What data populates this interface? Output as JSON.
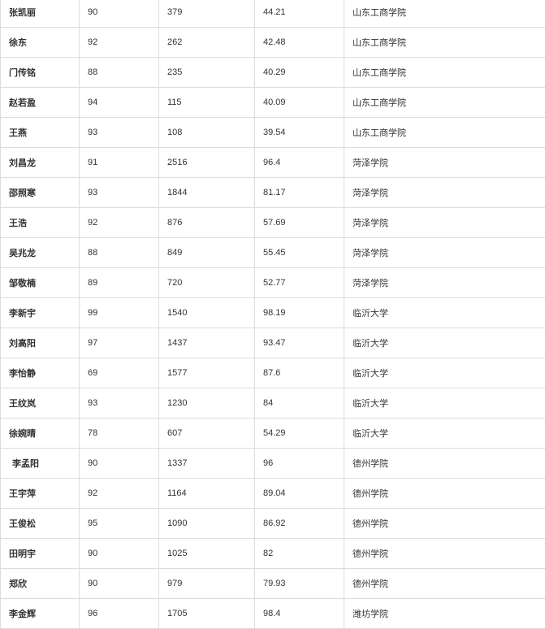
{
  "table": {
    "rows": [
      [
        "张凯丽",
        "90",
        "379",
        "44.21",
        "山东工商学院"
      ],
      [
        "徐东",
        "92",
        "262",
        "42.48",
        "山东工商学院"
      ],
      [
        "门传铭",
        "88",
        "235",
        "40.29",
        "山东工商学院"
      ],
      [
        "赵若盈",
        "94",
        "115",
        "40.09",
        "山东工商学院"
      ],
      [
        "王燕",
        "93",
        "108",
        "39.54",
        "山东工商学院"
      ],
      [
        "刘昌龙",
        "91",
        "2516",
        "96.4",
        "菏泽学院"
      ],
      [
        "邵照寒",
        "93",
        "1844",
        "81.17",
        "菏泽学院"
      ],
      [
        "王浩",
        "92",
        "876",
        "57.69",
        "菏泽学院"
      ],
      [
        "吴兆龙",
        "88",
        "849",
        "55.45",
        "菏泽学院"
      ],
      [
        "邹敬楠",
        "89",
        "720",
        "52.77",
        "菏泽学院"
      ],
      [
        "李新宇",
        "99",
        "1540",
        "98.19",
        "临沂大学"
      ],
      [
        "刘高阳",
        "97",
        "1437",
        "93.47",
        "临沂大学"
      ],
      [
        "李怡静",
        "69",
        "1577",
        "87.6",
        "临沂大学"
      ],
      [
        "王纹岚",
        "93",
        "1230",
        "84",
        "临沂大学"
      ],
      [
        "徐婉晴",
        "78",
        "607",
        "54.29",
        "临沂大学"
      ],
      [
        " 李孟阳",
        "90",
        "1337",
        "96",
        "德州学院"
      ],
      [
        "王宇萍",
        "92",
        "1164",
        "89.04",
        "德州学院"
      ],
      [
        "王俊松",
        "95",
        "1090",
        "86.92",
        "德州学院"
      ],
      [
        "田明宇",
        "90",
        "1025",
        "82",
        "德州学院"
      ],
      [
        "郑欣",
        "90",
        "979",
        "79.93",
        "德州学院"
      ],
      [
        "李金辉",
        "96",
        "1705",
        "98.4",
        "潍坊学院"
      ]
    ]
  }
}
